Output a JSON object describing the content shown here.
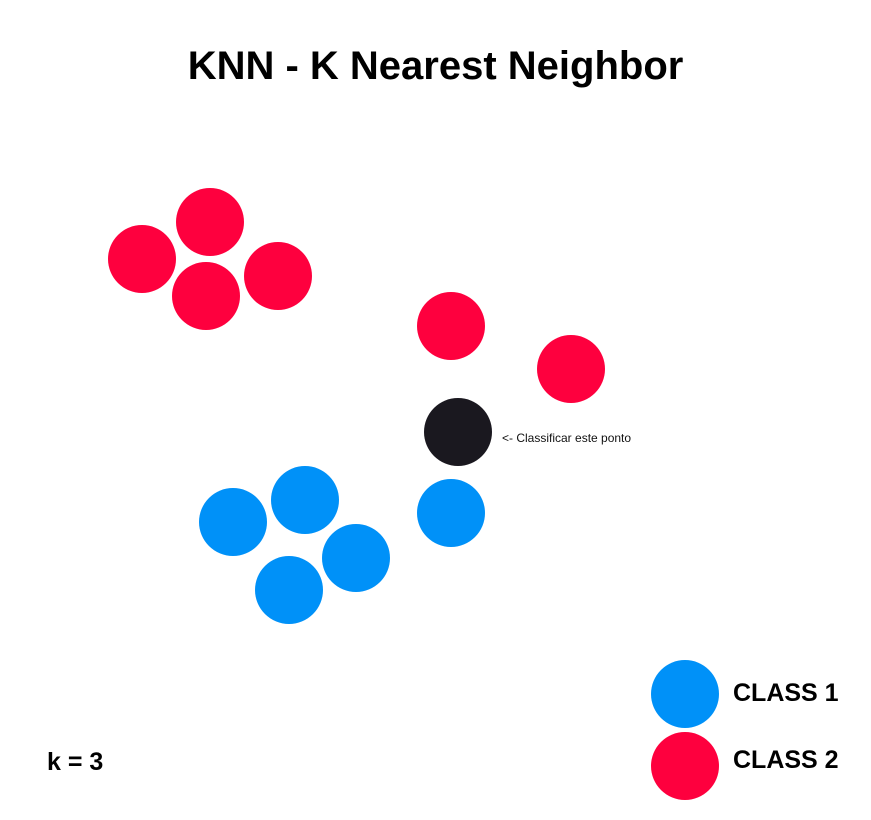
{
  "title": "KNN - K Nearest Neighbor",
  "annotation": "<- Classificar este ponto",
  "k_label": "k = 3",
  "legend": [
    {
      "label": "CLASS 1",
      "color": "#0091f8"
    },
    {
      "label": "CLASS 2",
      "color": "#fe003e"
    }
  ],
  "colors": {
    "class1": "#0091f8",
    "class2": "#fe003e",
    "query": "#1a181f"
  }
}
